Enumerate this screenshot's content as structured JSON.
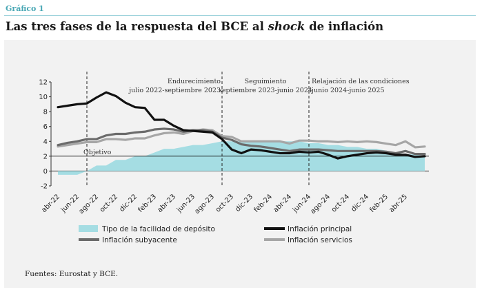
{
  "header": {
    "label": "Gráfico 1",
    "title_pre": "Las tres fases de la respuesta del BCE al ",
    "title_em": "shock",
    "title_post": " de inflación"
  },
  "source": "Fuentes: Eurostat y BCE.",
  "colors": {
    "deposit": "#a5dde3",
    "headline": "#111111",
    "core": "#6b6b6b",
    "services": "#a6a6a6"
  },
  "chart_data": {
    "type": "line",
    "ylim": [
      -2,
      12
    ],
    "yticks": [
      -2,
      0,
      2,
      4,
      6,
      8,
      10,
      12
    ],
    "grid": false,
    "legend_position": "bottom",
    "x_tick_labels": [
      "abr-22",
      "jun-22",
      "ago-22",
      "oct-22",
      "dic-22",
      "feb-23",
      "abr-23",
      "jun-23",
      "ago-23",
      "oct-23",
      "dic-23",
      "feb-24",
      "abr-24",
      "jun-24",
      "ago-24",
      "oct-24",
      "dic-24",
      "feb-25",
      "abr-25"
    ],
    "months": [
      "abr-22",
      "may-22",
      "jun-22",
      "jul-22",
      "ago-22",
      "sep-22",
      "oct-22",
      "nov-22",
      "dic-22",
      "ene-23",
      "feb-23",
      "mar-23",
      "abr-23",
      "may-23",
      "jun-23",
      "jul-23",
      "ago-23",
      "sep-23",
      "oct-23",
      "nov-23",
      "dic-23",
      "ene-24",
      "feb-24",
      "mar-24",
      "abr-24",
      "may-24",
      "jun-24",
      "jul-24",
      "ago-24",
      "sep-24",
      "oct-24",
      "nov-24",
      "dic-24",
      "ene-25",
      "feb-25",
      "mar-25",
      "abr-25",
      "may-25",
      "jun-25"
    ],
    "series": [
      {
        "name": "Tipo de la facilidad de depósito",
        "kind": "area",
        "values": [
          -0.5,
          -0.5,
          -0.5,
          0,
          0.75,
          0.75,
          1.5,
          1.5,
          2,
          2,
          2.5,
          3,
          3,
          3.25,
          3.5,
          3.5,
          3.75,
          4,
          4,
          4,
          4,
          4,
          4,
          4,
          4,
          4,
          3.75,
          3.75,
          3.5,
          3.5,
          3.25,
          3.25,
          3,
          3,
          2.75,
          2.5,
          2.25,
          2.25,
          2
        ]
      },
      {
        "name": "Inflación principal",
        "kind": "line",
        "values": [
          8.6,
          8.8,
          9,
          9.1,
          9.9,
          10.6,
          10.1,
          9.2,
          8.6,
          8.5,
          6.9,
          6.9,
          6.1,
          5.5,
          5.4,
          5.3,
          5.2,
          4.3,
          2.9,
          2.4,
          2.9,
          2.8,
          2.6,
          2.4,
          2.4,
          2.6,
          2.5,
          2.6,
          2.2,
          1.7,
          2,
          2.2,
          2.4,
          2.5,
          2.4,
          2.2,
          2.2,
          1.9,
          2
        ]
      },
      {
        "name": "Inflación subyacente",
        "kind": "line",
        "values": [
          3.5,
          3.8,
          4,
          4.3,
          4.3,
          4.8,
          5,
          5,
          5.2,
          5.3,
          5.6,
          5.7,
          5.6,
          5.3,
          5.5,
          5.5,
          5.3,
          4.5,
          4.2,
          3.6,
          3.4,
          3.3,
          3.1,
          2.9,
          2.7,
          2.9,
          2.9,
          2.9,
          2.8,
          2.7,
          2.7,
          2.7,
          2.7,
          2.7,
          2.6,
          2.4,
          2.7,
          2.3,
          2.3
        ]
      },
      {
        "name": "Inflación servicios",
        "kind": "line",
        "values": [
          3.3,
          3.5,
          3.7,
          3.9,
          3.9,
          4.3,
          4.3,
          4.2,
          4.4,
          4.4,
          4.8,
          5.1,
          5.2,
          5,
          5.4,
          5.6,
          5.5,
          4.7,
          4.6,
          4,
          4,
          4,
          4,
          4,
          3.7,
          4.1,
          4.1,
          4,
          4,
          3.9,
          4,
          3.9,
          4,
          3.9,
          3.7,
          3.5,
          4,
          3.2,
          3.3
        ]
      }
    ],
    "reference_line": {
      "value": 2,
      "label": "Objetivo"
    },
    "phases": [
      {
        "line1": "Endurecimiento",
        "line2": "julio 2022-septiembre 2023"
      },
      {
        "line1": "Seguimiento",
        "line2": "septiembre 2023-junio 2024"
      },
      {
        "line1": "Relajación de las condiciones",
        "line2": "junio 2024-junio 2025"
      }
    ],
    "phase_boundaries": [
      "jul-22",
      "sep-23",
      "jun-24"
    ]
  }
}
